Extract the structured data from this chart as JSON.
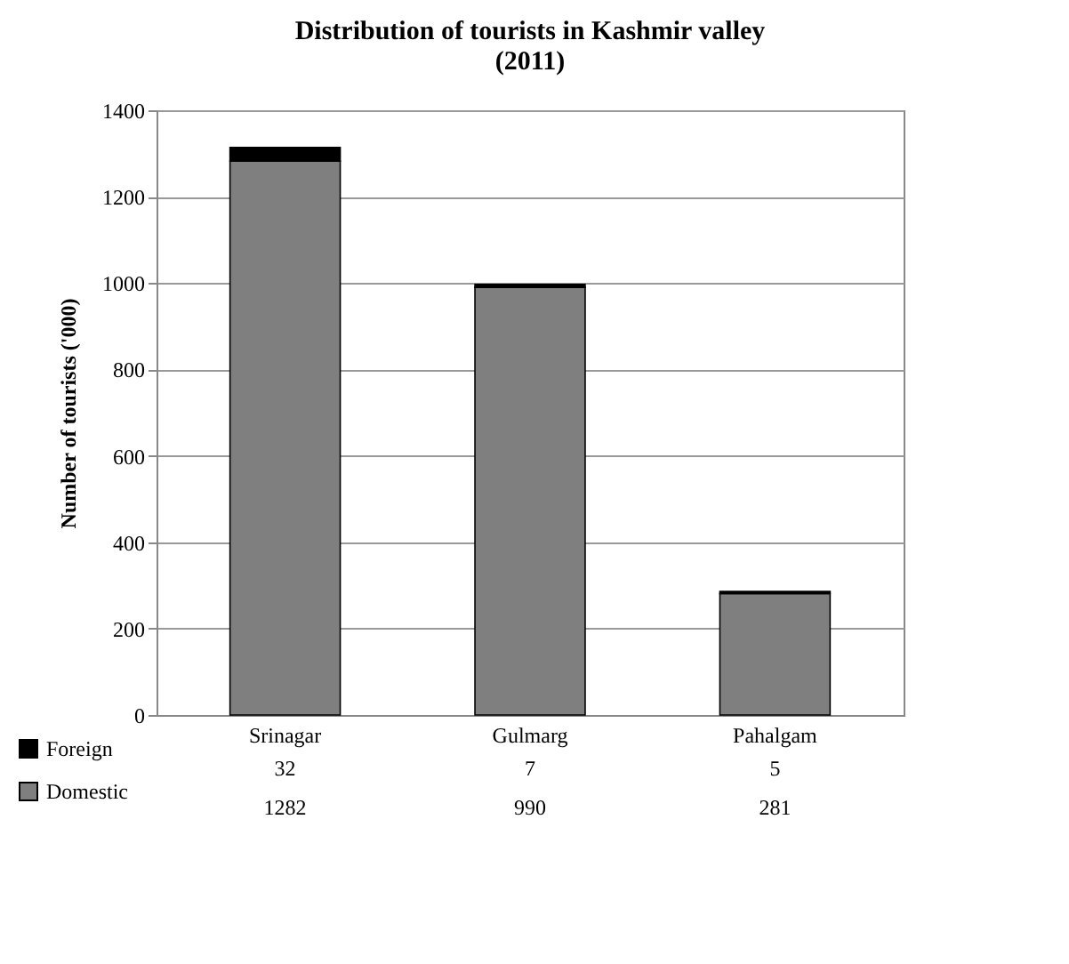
{
  "chart_data": {
    "type": "bar",
    "title": "Distribution of tourists in Kashmir valley\n(2011)",
    "ylabel": "Number of tourists ('000)",
    "categories": [
      "Srinagar",
      "Gulmarg",
      "Pahalgam"
    ],
    "series": [
      {
        "name": "Domestic",
        "color": "#7f7f7f",
        "values": [
          1282,
          990,
          281
        ]
      },
      {
        "name": "Foreign",
        "color": "#000000",
        "values": [
          32,
          7,
          5
        ]
      }
    ],
    "stacked": true,
    "ylim": [
      0,
      1400
    ],
    "yticks": [
      0,
      200,
      400,
      600,
      800,
      1000,
      1200,
      1400
    ],
    "grid": "y",
    "legend": "bottom",
    "data_labels": true
  }
}
